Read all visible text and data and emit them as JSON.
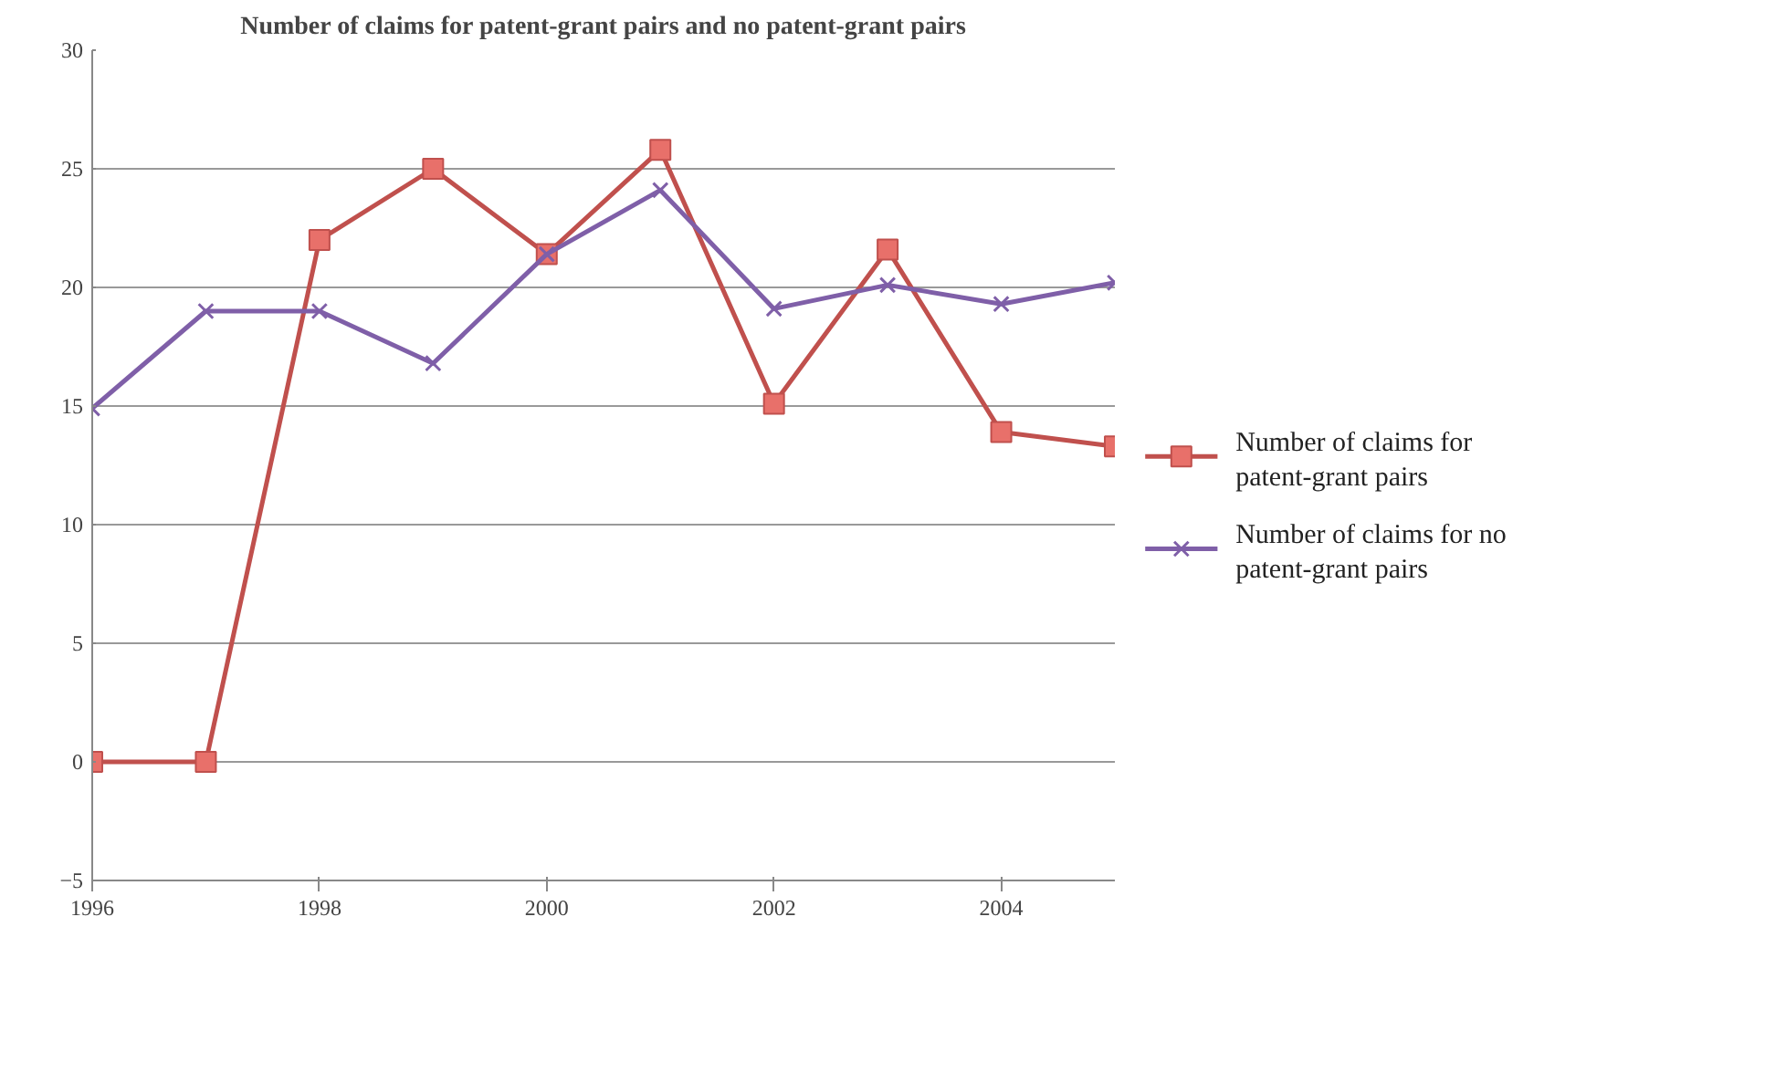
{
  "chart_data": {
    "type": "line",
    "title": "Number of claims for patent-grant pairs and no patent-grant pairs",
    "x": [
      1996,
      1997,
      1998,
      1999,
      2000,
      2001,
      2002,
      2003,
      2004,
      2005
    ],
    "series": [
      {
        "name": "Number of claims for patent-grant pairs",
        "color": "#c0504d",
        "marker": "square",
        "values": [
          0,
          0,
          22.0,
          25.0,
          21.4,
          25.8,
          15.1,
          21.6,
          13.9,
          13.3
        ]
      },
      {
        "name": "Number of claims for no patent-grant pairs",
        "color": "#7f5fa8",
        "marker": "cross",
        "values": [
          14.9,
          19.0,
          19.0,
          16.8,
          21.4,
          24.1,
          19.1,
          20.1,
          19.3,
          20.2
        ]
      }
    ],
    "xlim": [
      1996,
      2005
    ],
    "xticks": [
      1996,
      1998,
      2000,
      2002,
      2004
    ],
    "ylim": [
      -5,
      30
    ],
    "yticks": [
      -5,
      0,
      5,
      10,
      15,
      20,
      25,
      30
    ],
    "grid": "y",
    "legend": "right",
    "line_style": "solid"
  }
}
